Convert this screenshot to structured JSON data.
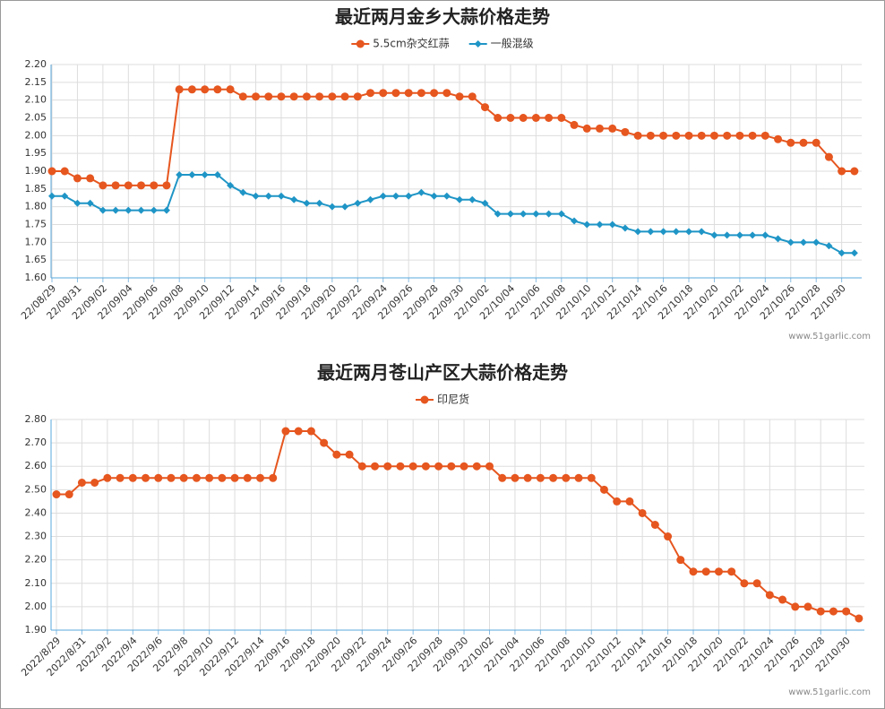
{
  "chart_data": [
    {
      "type": "line",
      "title": "最近两月金乡大蒜价格走势",
      "watermark": "www.51garlic.com",
      "grid": true,
      "categories": [
        "22/08/29",
        null,
        "22/08/31",
        null,
        "22/09/02",
        null,
        "22/09/04",
        null,
        "22/09/06",
        null,
        "22/09/08",
        null,
        "22/09/10",
        null,
        "22/09/12",
        null,
        "22/09/14",
        null,
        "22/09/16",
        null,
        "22/09/18",
        null,
        "22/09/20",
        null,
        "22/09/22",
        null,
        "22/09/24",
        null,
        "22/09/26",
        null,
        "22/09/28",
        null,
        "22/09/30",
        null,
        "22/10/02",
        null,
        "22/10/04",
        null,
        "22/10/06",
        null,
        "22/10/08",
        null,
        "22/10/10",
        null,
        "22/10/12",
        null,
        "22/10/14",
        null,
        "22/10/16",
        null,
        "22/10/18",
        null,
        "22/10/20",
        null,
        "22/10/22",
        null,
        "22/10/24",
        null,
        "22/10/26",
        null,
        "22/10/28",
        null,
        "22/10/30",
        null
      ],
      "series": [
        {
          "name": "5.5cm杂交红蒜",
          "color": "#e6561f",
          "marker": "circle",
          "values": [
            1.9,
            1.9,
            1.88,
            1.88,
            1.86,
            1.86,
            1.86,
            1.86,
            1.86,
            1.86,
            2.13,
            2.13,
            2.13,
            2.13,
            2.13,
            2.11,
            2.11,
            2.11,
            2.11,
            2.11,
            2.11,
            2.11,
            2.11,
            2.11,
            2.11,
            2.12,
            2.12,
            2.12,
            2.12,
            2.12,
            2.12,
            2.12,
            2.11,
            2.11,
            2.08,
            2.05,
            2.05,
            2.05,
            2.05,
            2.05,
            2.05,
            2.03,
            2.02,
            2.02,
            2.02,
            2.01,
            2.0,
            2.0,
            2.0,
            2.0,
            2.0,
            2.0,
            2.0,
            2.0,
            2.0,
            2.0,
            2.0,
            1.99,
            1.98,
            1.98,
            1.98,
            1.94,
            1.9,
            1.9
          ]
        },
        {
          "name": "一般混级",
          "color": "#1f95c6",
          "marker": "diamond",
          "values": [
            1.83,
            1.83,
            1.81,
            1.81,
            1.79,
            1.79,
            1.79,
            1.79,
            1.79,
            1.79,
            1.89,
            1.89,
            1.89,
            1.89,
            1.86,
            1.84,
            1.83,
            1.83,
            1.83,
            1.82,
            1.81,
            1.81,
            1.8,
            1.8,
            1.81,
            1.82,
            1.83,
            1.83,
            1.83,
            1.84,
            1.83,
            1.83,
            1.82,
            1.82,
            1.81,
            1.78,
            1.78,
            1.78,
            1.78,
            1.78,
            1.78,
            1.76,
            1.75,
            1.75,
            1.75,
            1.74,
            1.73,
            1.73,
            1.73,
            1.73,
            1.73,
            1.73,
            1.72,
            1.72,
            1.72,
            1.72,
            1.72,
            1.71,
            1.7,
            1.7,
            1.7,
            1.69,
            1.67,
            1.67
          ]
        }
      ],
      "ylim": [
        1.6,
        2.2
      ],
      "yticks": [
        {
          "value": 1.6,
          "label": "1.60"
        },
        {
          "value": 1.65,
          "label": "1.65"
        },
        {
          "value": 1.7,
          "label": "1.70"
        },
        {
          "value": 1.75,
          "label": "1.75"
        },
        {
          "value": 1.8,
          "label": "1.80"
        },
        {
          "value": 1.85,
          "label": "1.85"
        },
        {
          "value": 1.9,
          "label": "1.90"
        },
        {
          "value": 1.95,
          "label": "1.95"
        },
        {
          "value": 2.0,
          "label": "2.00"
        },
        {
          "value": 2.05,
          "label": "2.05"
        },
        {
          "value": 2.1,
          "label": "2.10"
        },
        {
          "value": 2.15,
          "label": "2.15"
        },
        {
          "value": 2.2,
          "label": "2.20"
        }
      ]
    },
    {
      "type": "line",
      "title": "最近两月苍山产区大蒜价格走势",
      "watermark": "www.51garlic.com",
      "grid": true,
      "categories": [
        "2022/8/29",
        null,
        "2022/8/31",
        null,
        "2022/9/2",
        null,
        "2022/9/4",
        null,
        "2022/9/6",
        null,
        "2022/9/8",
        null,
        "2022/9/10",
        null,
        "2022/9/12",
        null,
        "2022/9/14",
        null,
        "22/09/16",
        null,
        "22/09/18",
        null,
        "22/09/20",
        null,
        "22/09/22",
        null,
        "22/09/24",
        null,
        "22/09/26",
        null,
        "22/09/28",
        null,
        "22/09/30",
        null,
        "22/10/02",
        null,
        "22/10/04",
        null,
        "22/10/06",
        null,
        "22/10/08",
        null,
        "22/10/10",
        null,
        "22/10/12",
        null,
        "22/10/14",
        null,
        "22/10/16",
        null,
        "22/10/18",
        null,
        "22/10/20",
        null,
        "22/10/22",
        null,
        "22/10/24",
        null,
        "22/10/26",
        null,
        "22/10/28",
        null,
        "22/10/30",
        null
      ],
      "series": [
        {
          "name": "印尼货",
          "color": "#e6561f",
          "marker": "circle",
          "values": [
            2.48,
            2.48,
            2.53,
            2.53,
            2.55,
            2.55,
            2.55,
            2.55,
            2.55,
            2.55,
            2.55,
            2.55,
            2.55,
            2.55,
            2.55,
            2.55,
            2.55,
            2.55,
            2.75,
            2.75,
            2.75,
            2.7,
            2.65,
            2.65,
            2.6,
            2.6,
            2.6,
            2.6,
            2.6,
            2.6,
            2.6,
            2.6,
            2.6,
            2.6,
            2.6,
            2.55,
            2.55,
            2.55,
            2.55,
            2.55,
            2.55,
            2.55,
            2.55,
            2.5,
            2.45,
            2.45,
            2.4,
            2.35,
            2.3,
            2.2,
            2.15,
            2.15,
            2.15,
            2.15,
            2.1,
            2.1,
            2.05,
            2.03,
            2.0,
            2.0,
            1.98,
            1.98,
            1.98,
            1.95
          ]
        }
      ],
      "ylim": [
        1.9,
        2.8
      ],
      "yticks": [
        {
          "value": 1.9,
          "label": "1.90"
        },
        {
          "value": 2.0,
          "label": "2.00"
        },
        {
          "value": 2.1,
          "label": "2.10"
        },
        {
          "value": 2.2,
          "label": "2.20"
        },
        {
          "value": 2.3,
          "label": "2.30"
        },
        {
          "value": 2.4,
          "label": "2.40"
        },
        {
          "value": 2.5,
          "label": "2.50"
        },
        {
          "value": 2.6,
          "label": "2.60"
        },
        {
          "value": 2.7,
          "label": "2.70"
        },
        {
          "value": 2.8,
          "label": "2.80"
        }
      ]
    }
  ]
}
